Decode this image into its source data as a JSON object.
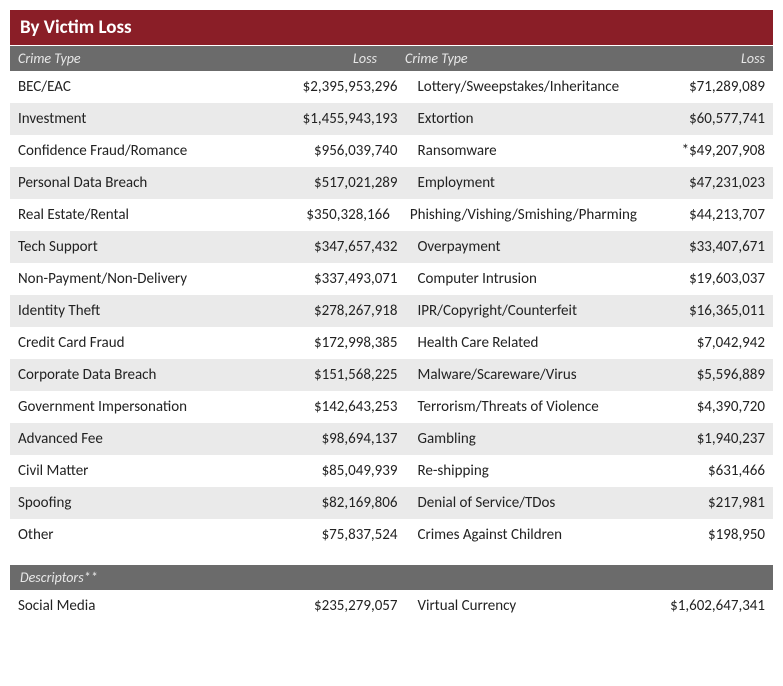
{
  "title": "By Victim Loss",
  "headers": {
    "crime_type": "Crime Type",
    "loss": "Loss"
  },
  "col_widths": {
    "left_crime": 215,
    "left_loss": 160,
    "right_crime": 260,
    "right_loss": 128
  },
  "colors": {
    "title_bg": "#8a1e27",
    "header_bg": "#6b6b6b",
    "stripe_bg": "#eaeaea",
    "text": "#222222"
  },
  "left_rows": [
    {
      "crime": "BEC/EAC",
      "loss": "$2,395,953,296"
    },
    {
      "crime": "Investment",
      "loss": "$1,455,943,193"
    },
    {
      "crime": "Confidence Fraud/Romance",
      "loss": "$956,039,740"
    },
    {
      "crime": "Personal Data Breach",
      "loss": "$517,021,289"
    },
    {
      "crime": "Real Estate/Rental",
      "loss": "$350,328,166"
    },
    {
      "crime": "Tech Support",
      "loss": "$347,657,432"
    },
    {
      "crime": "Non-Payment/Non-Delivery",
      "loss": "$337,493,071"
    },
    {
      "crime": "Identity Theft",
      "loss": "$278,267,918"
    },
    {
      "crime": "Credit Card Fraud",
      "loss": "$172,998,385"
    },
    {
      "crime": "Corporate Data Breach",
      "loss": "$151,568,225"
    },
    {
      "crime": "Government Impersonation",
      "loss": "$142,643,253"
    },
    {
      "crime": "Advanced Fee",
      "loss": "$98,694,137"
    },
    {
      "crime": "Civil Matter",
      "loss": "$85,049,939"
    },
    {
      "crime": "Spoofing",
      "loss": "$82,169,806"
    },
    {
      "crime": "Other",
      "loss": "$75,837,524"
    }
  ],
  "right_rows": [
    {
      "crime": "Lottery/Sweepstakes/Inheritance",
      "loss": "$71,289,089"
    },
    {
      "crime": "Extortion",
      "loss": "$60,577,741"
    },
    {
      "crime": "Ransomware",
      "loss": "*$49,207,908"
    },
    {
      "crime": "Employment",
      "loss": "$47,231,023"
    },
    {
      "crime": "Phishing/Vishing/Smishing/Pharming",
      "loss": "$44,213,707"
    },
    {
      "crime": "Overpayment",
      "loss": "$33,407,671"
    },
    {
      "crime": "Computer Intrusion",
      "loss": "$19,603,037"
    },
    {
      "crime": "IPR/Copyright/Counterfeit",
      "loss": "$16,365,011"
    },
    {
      "crime": "Health Care Related",
      "loss": "$7,042,942"
    },
    {
      "crime": "Malware/Scareware/Virus",
      "loss": "$5,596,889"
    },
    {
      "crime": "Terrorism/Threats of Violence",
      "loss": "$4,390,720"
    },
    {
      "crime": "Gambling",
      "loss": "$1,940,237"
    },
    {
      "crime": "Re-shipping",
      "loss": "$631,466"
    },
    {
      "crime": "Denial of Service/TDos",
      "loss": "$217,981"
    },
    {
      "crime": "Crimes Against Children",
      "loss": "$198,950"
    }
  ],
  "descriptors_header": "Descriptors**",
  "descriptors": [
    {
      "label": "Social Media",
      "value": "$235,279,057"
    },
    {
      "label": "Virtual Currency",
      "value": "$1,602,647,341"
    }
  ]
}
